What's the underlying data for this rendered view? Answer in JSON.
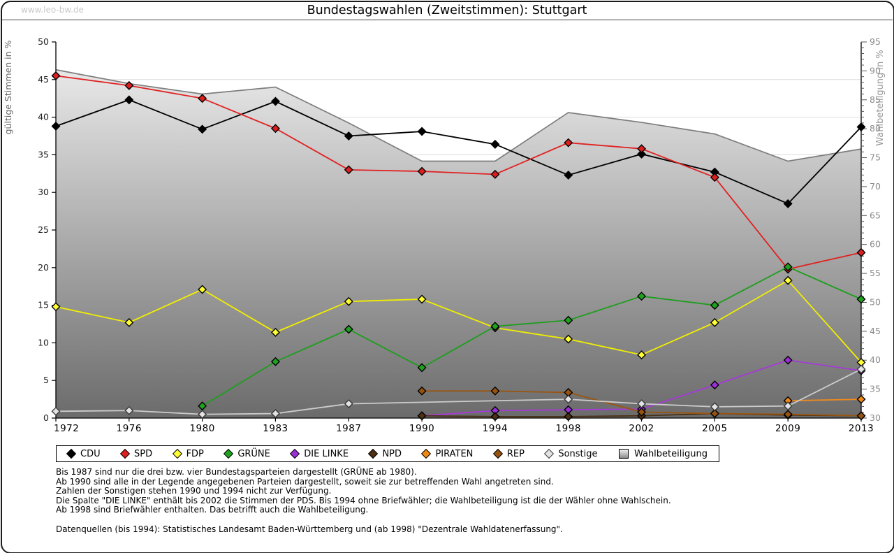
{
  "header": {
    "watermark": "www.leo-bw.de",
    "title": "Bundestagswahlen (Zweitstimmen): Stuttgart"
  },
  "chart_data": {
    "type": "line",
    "title": "Bundestagswahlen (Zweitstimmen): Stuttgart",
    "categories": [
      "1972",
      "1976",
      "1980",
      "1983",
      "1987",
      "1990",
      "1994",
      "1998",
      "2002",
      "2005",
      "2009",
      "2013"
    ],
    "y_left": {
      "label": "gültige Stimmen in %",
      "min": 0,
      "max": 50,
      "tick_step": 5
    },
    "y_right": {
      "label": "Wahlbeteiligung in %",
      "min": 30,
      "max": 95,
      "tick_step": 5
    },
    "grid": true,
    "legend_position": "bottom",
    "series": [
      {
        "name": "CDU",
        "color": "#000000",
        "marker_fill": "#000000",
        "marker_stroke": "#000000",
        "values": [
          38.8,
          42.3,
          38.4,
          42.1,
          37.5,
          38.1,
          36.4,
          32.3,
          35.1,
          32.7,
          28.5,
          38.7
        ]
      },
      {
        "name": "SPD",
        "color": "#e02222",
        "marker_fill": "#dd1f1f",
        "marker_stroke": "#000000",
        "values": [
          45.5,
          44.2,
          42.5,
          38.5,
          33.0,
          32.8,
          32.4,
          36.6,
          35.8,
          32.0,
          19.8,
          22.0
        ]
      },
      {
        "name": "FDP",
        "color": "#f2ef00",
        "marker_fill": "#ffff33",
        "marker_stroke": "#000000",
        "values": [
          14.8,
          12.7,
          17.1,
          11.4,
          15.5,
          15.8,
          12.0,
          10.5,
          8.4,
          12.7,
          18.3,
          7.4
        ]
      },
      {
        "name": "GRÜNE",
        "color": "#1d9e1d",
        "marker_fill": "#1fa31f",
        "marker_stroke": "#000000",
        "values": [
          null,
          null,
          1.6,
          7.5,
          11.8,
          6.7,
          12.2,
          13.0,
          16.2,
          15.0,
          20.1,
          15.8
        ]
      },
      {
        "name": "DIE LINKE",
        "color": "#a43bd6",
        "marker_fill": "#9b2fd6",
        "marker_stroke": "#000000",
        "values": [
          null,
          null,
          null,
          null,
          null,
          0.3,
          1.0,
          1.1,
          1.2,
          4.4,
          7.7,
          6.3
        ]
      },
      {
        "name": "NPD",
        "color": "#4a2f12",
        "marker_fill": "#4d3014",
        "marker_stroke": "#000000",
        "values": [
          null,
          null,
          null,
          null,
          null,
          0.3,
          0.2,
          0.2,
          0.3,
          0.6,
          0.4,
          0.3
        ]
      },
      {
        "name": "PIRATEN",
        "color": "#f08a1d",
        "marker_fill": "#ef8816",
        "marker_stroke": "#000000",
        "values": [
          null,
          null,
          null,
          null,
          null,
          null,
          null,
          null,
          null,
          null,
          2.3,
          2.5
        ]
      },
      {
        "name": "REP",
        "color": "#9a550f",
        "marker_fill": "#96520e",
        "marker_stroke": "#000000",
        "values": [
          null,
          null,
          null,
          null,
          null,
          3.6,
          3.6,
          3.4,
          0.8,
          0.6,
          0.5,
          0.3
        ]
      },
      {
        "name": "Sonstige",
        "color": "#cccccc",
        "marker_fill": "#e3e3e3",
        "marker_stroke": "#3a3a3a",
        "values": [
          0.9,
          1.0,
          0.5,
          0.6,
          1.9,
          null,
          null,
          2.5,
          1.9,
          1.5,
          1.6,
          6.5
        ]
      }
    ],
    "turnout": {
      "name": "Wahlbeteiligung",
      "axis": "right",
      "line_color": "#7d7d7d",
      "fill_top": "#f2f2f2",
      "fill_bottom": "#6b6b6b",
      "values": [
        90.2,
        87.8,
        86.0,
        87.2,
        81.0,
        74.4,
        74.4,
        82.8,
        81.1,
        79.1,
        74.4,
        76.5
      ]
    }
  },
  "notes": {
    "lines": [
      "Bis 1987 sind nur die drei bzw. vier Bundestagsparteien dargestellt (GRÜNE ab 1980).",
      "Ab 1990 sind alle in der Legende angegebenen Parteien dargestellt, soweit sie zur betreffenden Wahl angetreten sind.",
      "Zahlen der Sonstigen stehen 1990 und 1994 nicht zur Verfügung.",
      "Die Spalte \"DIE LINKE\" enthält bis 2002 die Stimmen der PDS. Bis 1994 ohne Briefwähler; die Wahlbeteiligung ist die der Wähler ohne Wahlschein.",
      "Ab 1998 sind Briefwähler enthalten. Das betrifft auch die Wahlbeteiligung."
    ],
    "source": "Datenquellen (bis 1994): Statistisches Landesamt Baden-Württemberg und (ab 1998) \"Dezentrale Wahldatenerfassung\"."
  }
}
